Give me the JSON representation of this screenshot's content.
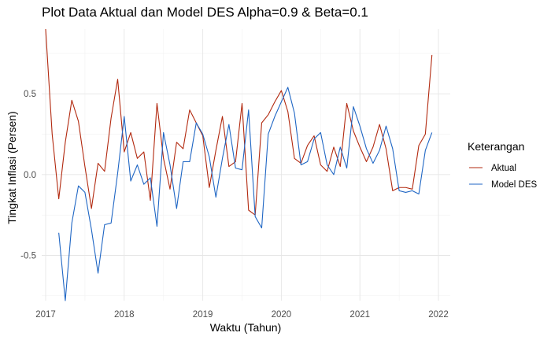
{
  "chart_data": {
    "type": "line",
    "title": "Plot Data Aktual dan Model DES Alpha=0.9 & Beta=0.1",
    "xlabel": "Waktu (Tahun)",
    "ylabel": "Tingkat Inflasi (Persen)",
    "xlim": [
      2016.95,
      2022.15
    ],
    "ylim": [
      -0.78,
      0.9
    ],
    "x_ticks": [
      2017,
      2018,
      2019,
      2020,
      2021,
      2022
    ],
    "x_tick_labels": [
      "2017",
      "2018",
      "2019",
      "2020",
      "2021",
      "2022"
    ],
    "y_ticks": [
      -0.5,
      0.0,
      0.5
    ],
    "y_tick_labels": [
      "-0.5",
      "0.0",
      "0.5"
    ],
    "grid": true,
    "legend": {
      "title": "Keterangan",
      "position": "right",
      "entries": [
        "Aktual",
        "Model DES"
      ]
    },
    "series": [
      {
        "name": "Aktual",
        "color": "#b2290f",
        "x": [
          2017.0,
          2017.083,
          2017.167,
          2017.25,
          2017.333,
          2017.417,
          2017.5,
          2017.583,
          2017.667,
          2017.75,
          2017.833,
          2017.917,
          2018.0,
          2018.083,
          2018.167,
          2018.25,
          2018.333,
          2018.417,
          2018.5,
          2018.583,
          2018.667,
          2018.75,
          2018.833,
          2018.917,
          2019.0,
          2019.083,
          2019.167,
          2019.25,
          2019.333,
          2019.417,
          2019.5,
          2019.583,
          2019.667,
          2019.75,
          2019.833,
          2019.917,
          2020.0,
          2020.083,
          2020.167,
          2020.25,
          2020.333,
          2020.417,
          2020.5,
          2020.583,
          2020.667,
          2020.75,
          2020.833,
          2020.917,
          2021.0,
          2021.083,
          2021.167,
          2021.25,
          2021.333,
          2021.417,
          2021.5,
          2021.583,
          2021.667,
          2021.75,
          2021.833,
          2021.917
        ],
        "y": [
          0.9,
          0.25,
          -0.15,
          0.2,
          0.46,
          0.33,
          0.05,
          -0.21,
          0.07,
          0.02,
          0.35,
          0.59,
          0.14,
          0.26,
          0.1,
          0.14,
          -0.16,
          0.44,
          0.1,
          -0.09,
          0.2,
          0.16,
          0.4,
          0.32,
          0.24,
          -0.08,
          0.15,
          0.36,
          0.05,
          0.08,
          0.44,
          -0.22,
          -0.25,
          0.32,
          0.37,
          0.45,
          0.52,
          0.39,
          0.1,
          0.07,
          0.18,
          0.24,
          0.06,
          0.02,
          0.17,
          0.05,
          0.44,
          0.27,
          0.17,
          0.08,
          0.17,
          0.31,
          0.16,
          -0.1,
          -0.08,
          -0.08,
          -0.09,
          0.18,
          0.25,
          0.74
        ]
      },
      {
        "name": "Model DES",
        "color": "#1f66c4",
        "x": [
          2017.167,
          2017.25,
          2017.333,
          2017.417,
          2017.5,
          2017.583,
          2017.667,
          2017.75,
          2017.833,
          2017.917,
          2018.0,
          2018.083,
          2018.167,
          2018.25,
          2018.333,
          2018.417,
          2018.5,
          2018.583,
          2018.667,
          2018.75,
          2018.833,
          2018.917,
          2019.0,
          2019.083,
          2019.167,
          2019.25,
          2019.333,
          2019.417,
          2019.5,
          2019.583,
          2019.667,
          2019.75,
          2019.833,
          2019.917,
          2020.0,
          2020.083,
          2020.167,
          2020.25,
          2020.333,
          2020.417,
          2020.5,
          2020.583,
          2020.667,
          2020.75,
          2020.833,
          2020.917,
          2021.0,
          2021.083,
          2021.167,
          2021.25,
          2021.333,
          2021.417,
          2021.5,
          2021.583,
          2021.667,
          2021.75,
          2021.833,
          2021.917
        ],
        "y": [
          -0.36,
          -0.78,
          -0.3,
          -0.07,
          -0.11,
          -0.34,
          -0.61,
          -0.31,
          -0.3,
          0.01,
          0.36,
          -0.04,
          0.06,
          -0.06,
          -0.02,
          -0.32,
          0.26,
          0.06,
          -0.21,
          0.08,
          0.08,
          0.32,
          0.25,
          0.11,
          -0.14,
          0.1,
          0.31,
          0.04,
          0.03,
          0.4,
          -0.26,
          -0.33,
          0.25,
          0.36,
          0.45,
          0.54,
          0.38,
          0.06,
          0.08,
          0.22,
          0.26,
          0.06,
          0.0,
          0.17,
          0.04,
          0.42,
          0.3,
          0.16,
          0.07,
          0.15,
          0.3,
          0.16,
          -0.1,
          -0.11,
          -0.1,
          -0.12,
          0.15,
          0.26
        ]
      }
    ]
  }
}
